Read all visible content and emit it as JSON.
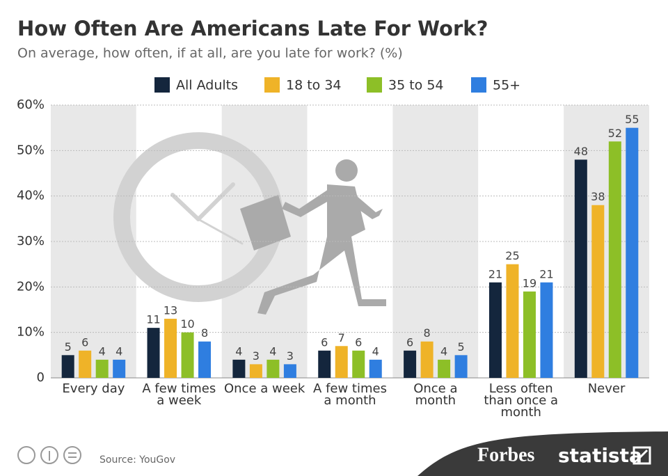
{
  "chart_data": {
    "type": "bar",
    "title": "How Often Are Americans Late For Work?",
    "subtitle": "On average, how often, if at all, are you late for work? (%)",
    "categories": [
      "Every day",
      "A few times a week",
      "Once a week",
      "A few times a month",
      "Once a month",
      "Less often than once a month",
      "Never"
    ],
    "series": [
      {
        "name": "All Adults",
        "color": "#14263d",
        "values": [
          5,
          11,
          4,
          6,
          6,
          21,
          48
        ]
      },
      {
        "name": "18 to 34",
        "color": "#efb328",
        "values": [
          6,
          13,
          3,
          7,
          8,
          25,
          38
        ]
      },
      {
        "name": "35 to 54",
        "color": "#8dbf27",
        "values": [
          4,
          10,
          4,
          6,
          4,
          19,
          52
        ]
      },
      {
        "name": "55+",
        "color": "#2f7ee0",
        "values": [
          4,
          8,
          3,
          4,
          5,
          21,
          55
        ]
      }
    ],
    "ylim": [
      0,
      60
    ],
    "yticks": [
      0,
      {
        "value": 10,
        "label": "10%"
      },
      {
        "value": 20,
        "label": "20%"
      },
      {
        "value": 30,
        "label": "30%"
      },
      {
        "value": 40,
        "label": "40%"
      },
      {
        "value": 50,
        "label": "50%"
      },
      {
        "value": 60,
        "label": "60%"
      }
    ],
    "grid": true,
    "legend": "top"
  },
  "footer": {
    "source": "Source: YouGov",
    "brands": [
      "Forbes",
      "statista"
    ]
  }
}
